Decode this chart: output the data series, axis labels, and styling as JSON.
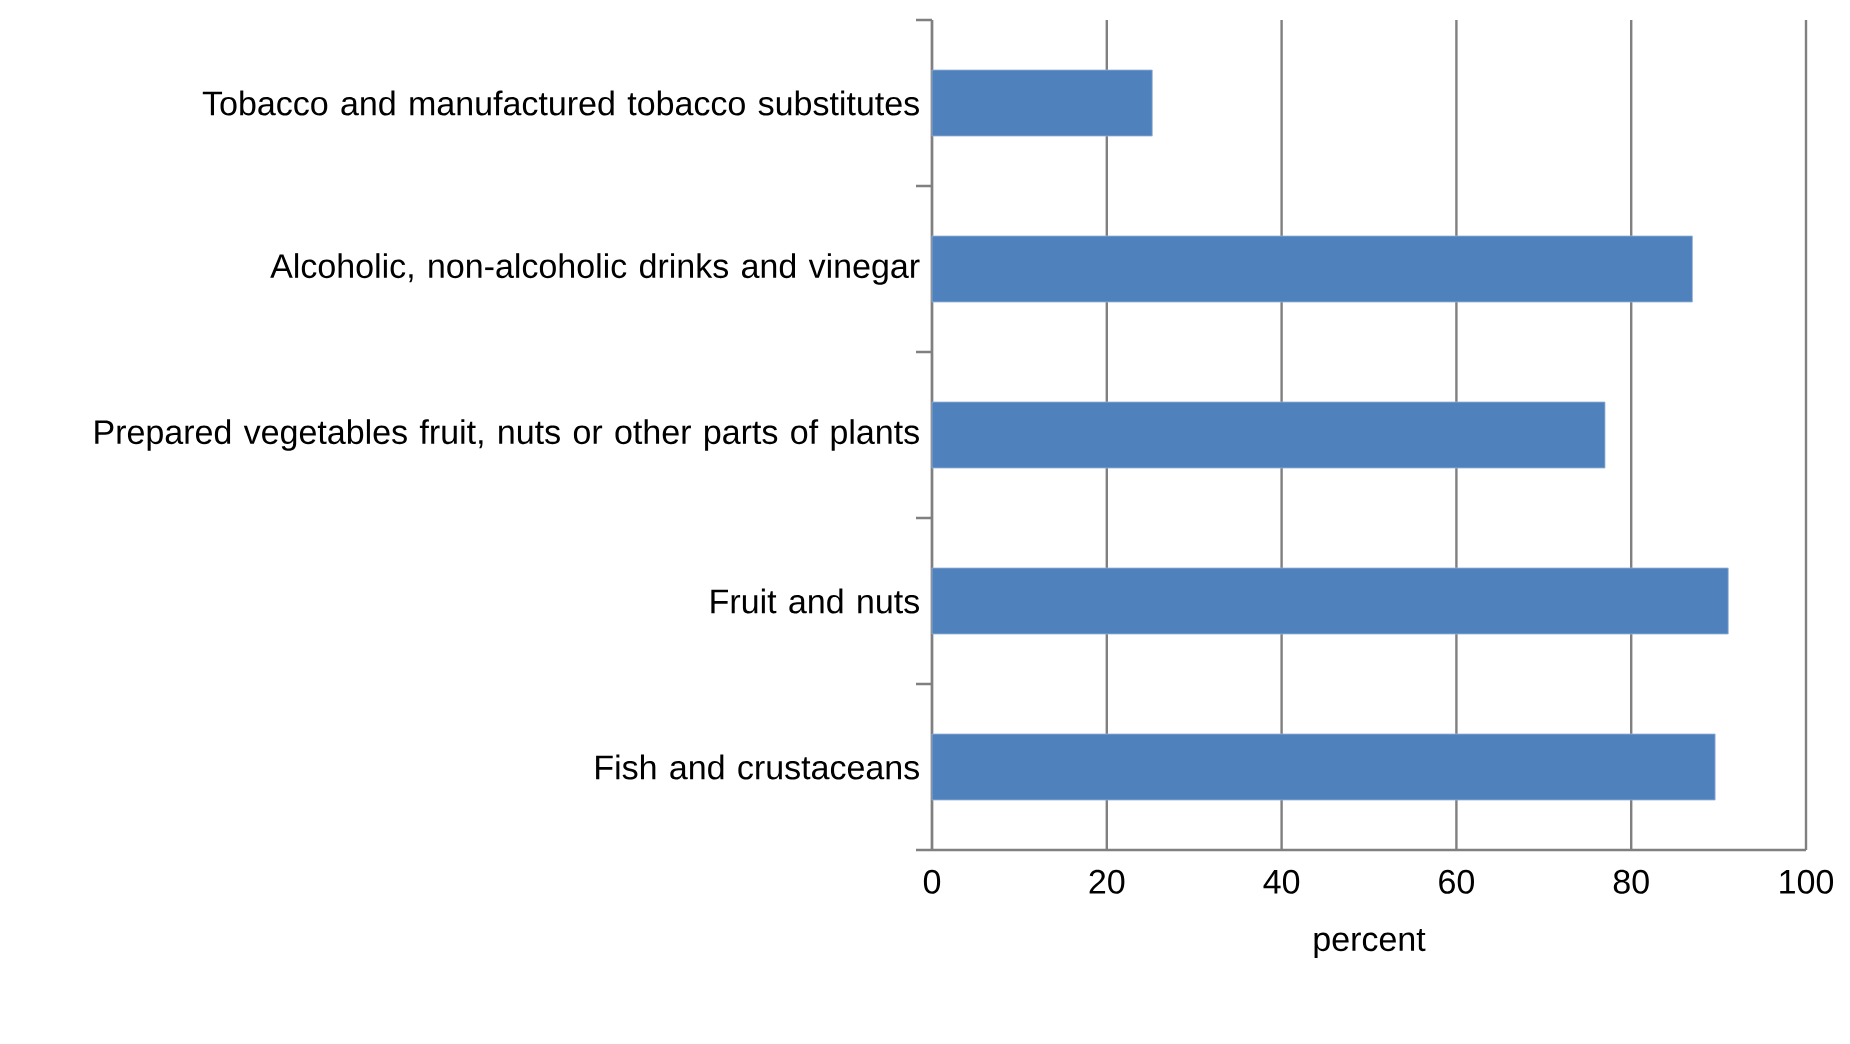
{
  "chart_data": {
    "type": "bar",
    "orientation": "horizontal",
    "categories": [
      "Tobacco and manufactured tobacco substitutes",
      "Alcoholic, non-alcoholic drinks and vinegar",
      "Prepared vegetables fruit, nuts or other parts of plants",
      "Fruit and nuts",
      "Fish and crustaceans"
    ],
    "values": [
      25.2,
      87.0,
      77.0,
      91.1,
      89.6
    ],
    "color": "#4f81bd",
    "xlabel": "percent",
    "xlim": [
      0,
      100
    ],
    "xticks": [
      0,
      20,
      40,
      60,
      80,
      100
    ],
    "grid": "x"
  }
}
